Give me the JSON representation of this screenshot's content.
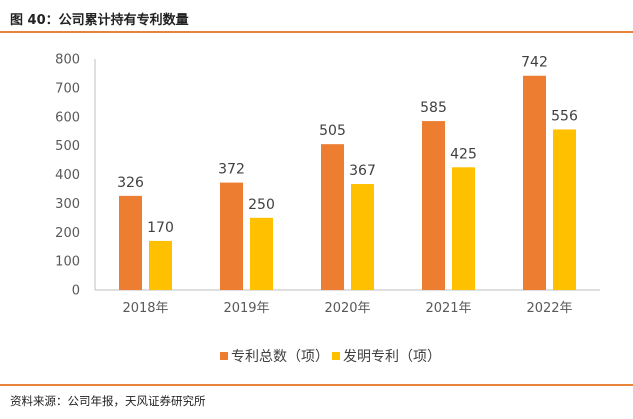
{
  "header": {
    "title": "图 40：公司累计持有专利数量"
  },
  "footer": {
    "source": "资料来源：公司年报，天风证券研究所"
  },
  "colors": {
    "accent": "#ED7D31",
    "series_1": "#ED7D31",
    "series_2": "#FFC000",
    "rule": "#E8833A"
  },
  "chart_data": {
    "type": "bar",
    "title": "公司累计持有专利数量",
    "xlabel": "",
    "ylabel": "",
    "ylim": [
      0,
      800
    ],
    "yticks": [
      0,
      100,
      200,
      300,
      400,
      500,
      600,
      700,
      800
    ],
    "categories": [
      "2018年",
      "2019年",
      "2020年",
      "2021年",
      "2022年"
    ],
    "series": [
      {
        "name": "专利总数（项）",
        "values": [
          326,
          372,
          505,
          585,
          742
        ]
      },
      {
        "name": "发明专利（项）",
        "values": [
          170,
          250,
          367,
          425,
          556
        ]
      }
    ],
    "legend": "bottom",
    "grid": false
  }
}
